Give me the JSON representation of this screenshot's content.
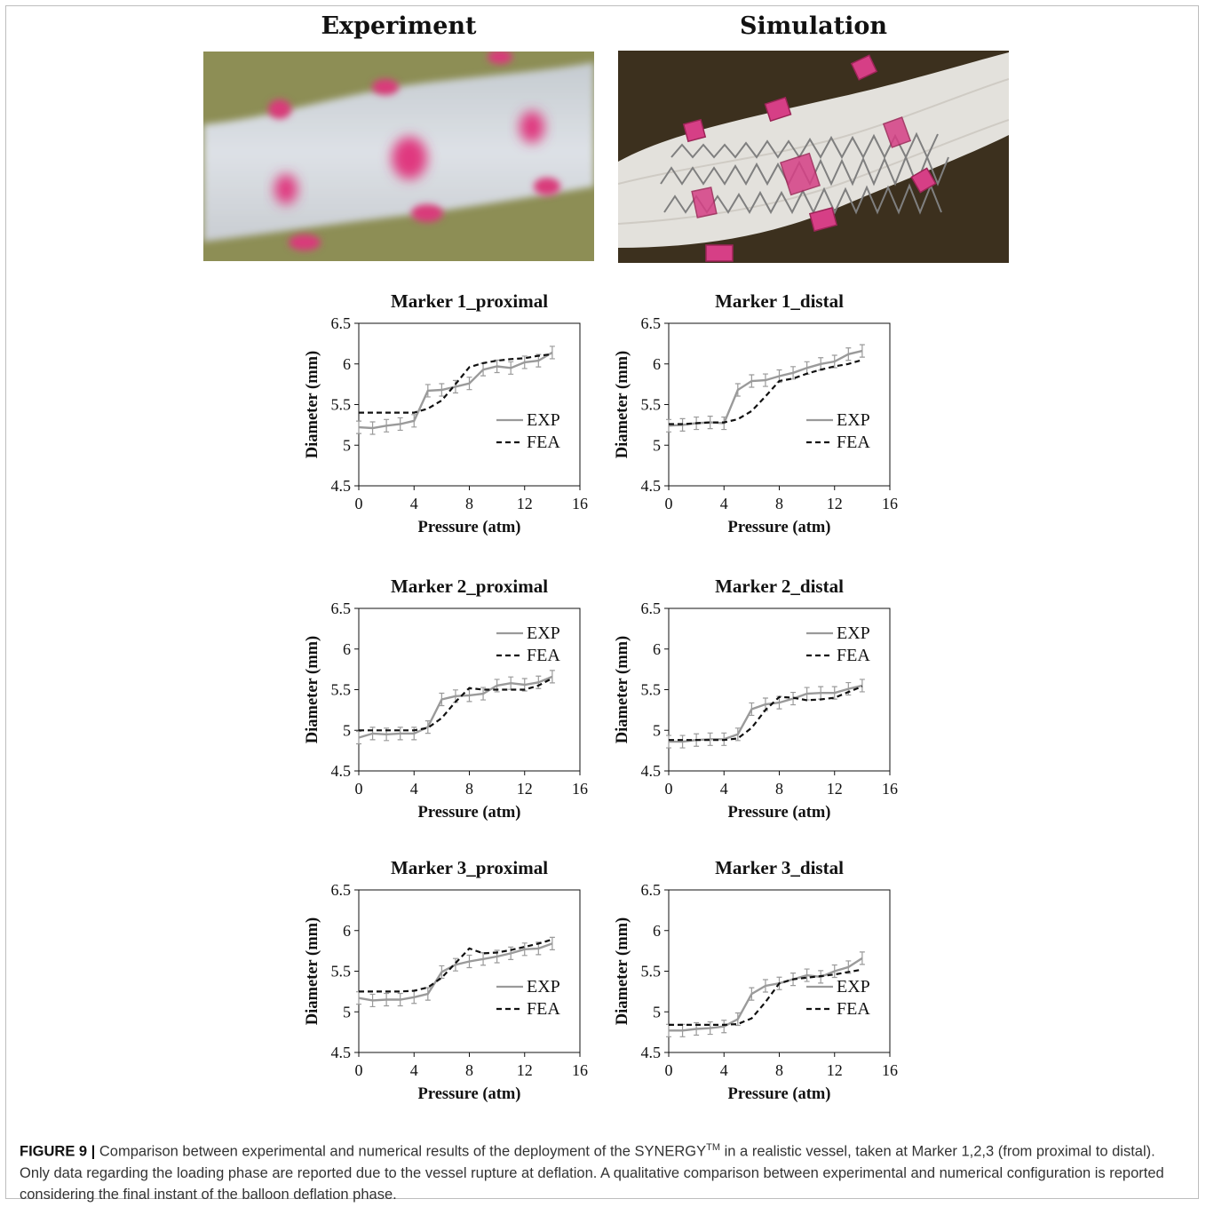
{
  "panels": {
    "experiment_title": "Experiment",
    "simulation_title": "Simulation"
  },
  "colors": {
    "exp": "#9a9a9a",
    "fea": "#111111",
    "marker_pink": "#e0387f",
    "photo_bg_experiment": "#8d8e55",
    "photo_bg_simulation": "#3c301e"
  },
  "chart_data": [
    {
      "type": "line",
      "title": "Marker 1_proximal",
      "xlabel": "Pressure (atm)",
      "ylabel": "Diameter (mm)",
      "xlim": [
        0,
        16
      ],
      "ylim": [
        4.5,
        6.5
      ],
      "xticks": [
        "0",
        "4",
        "8",
        "12",
        "16"
      ],
      "yticks": [
        "4.5",
        "5",
        "5.5",
        "6",
        "6.5"
      ],
      "legend_position": "lower-right",
      "series": [
        {
          "name": "EXP",
          "style": "solid-gray",
          "error_bars": true,
          "x": [
            0,
            1,
            2,
            3,
            4,
            5,
            6,
            7,
            8,
            9,
            10,
            11,
            12,
            13,
            14
          ],
          "y": [
            5.22,
            5.21,
            5.24,
            5.26,
            5.3,
            5.67,
            5.68,
            5.72,
            5.76,
            5.93,
            5.97,
            5.95,
            6.02,
            6.04,
            6.14
          ]
        },
        {
          "name": "FEA",
          "style": "dashed-black",
          "error_bars": false,
          "x": [
            0,
            1,
            2,
            3,
            4,
            5,
            6,
            7,
            8,
            9,
            10,
            11,
            12,
            13,
            14
          ],
          "y": [
            5.4,
            5.4,
            5.4,
            5.4,
            5.4,
            5.45,
            5.55,
            5.75,
            5.96,
            6.01,
            6.04,
            6.06,
            6.07,
            6.1,
            6.12
          ]
        }
      ]
    },
    {
      "type": "line",
      "title": "Marker 1_distal",
      "xlabel": "Pressure (atm)",
      "ylabel": "Diameter (mm)",
      "xlim": [
        0,
        16
      ],
      "ylim": [
        4.5,
        6.5
      ],
      "xticks": [
        "0",
        "4",
        "8",
        "12",
        "16"
      ],
      "yticks": [
        "4.5",
        "5",
        "5.5",
        "6",
        "6.5"
      ],
      "legend_position": "lower-right",
      "series": [
        {
          "name": "EXP",
          "style": "solid-gray",
          "error_bars": true,
          "x": [
            0,
            1,
            2,
            3,
            4,
            5,
            6,
            7,
            8,
            9,
            10,
            11,
            12,
            13,
            14
          ],
          "y": [
            5.24,
            5.25,
            5.27,
            5.28,
            5.27,
            5.68,
            5.79,
            5.8,
            5.85,
            5.89,
            5.95,
            6.0,
            6.03,
            6.12,
            6.16
          ]
        },
        {
          "name": "FEA",
          "style": "dashed-black",
          "error_bars": false,
          "x": [
            0,
            1,
            2,
            3,
            4,
            5,
            6,
            7,
            8,
            9,
            10,
            11,
            12,
            13,
            14
          ],
          "y": [
            5.26,
            5.26,
            5.27,
            5.28,
            5.28,
            5.32,
            5.42,
            5.6,
            5.79,
            5.82,
            5.88,
            5.93,
            5.97,
            6.0,
            6.05
          ]
        }
      ]
    },
    {
      "type": "line",
      "title": "Marker 2_proximal",
      "xlabel": "Pressure (atm)",
      "ylabel": "Diameter (mm)",
      "xlim": [
        0,
        16
      ],
      "ylim": [
        4.5,
        6.5
      ],
      "xticks": [
        "0",
        "4",
        "8",
        "12",
        "16"
      ],
      "yticks": [
        "4.5",
        "5",
        "5.5",
        "6",
        "6.5"
      ],
      "legend_position": "top-right",
      "series": [
        {
          "name": "EXP",
          "style": "solid-gray",
          "error_bars": true,
          "x": [
            0,
            1,
            2,
            3,
            4,
            5,
            6,
            7,
            8,
            9,
            10,
            11,
            12,
            13,
            14
          ],
          "y": [
            4.91,
            4.96,
            4.95,
            4.96,
            4.96,
            5.04,
            5.38,
            5.42,
            5.43,
            5.45,
            5.55,
            5.58,
            5.56,
            5.59,
            5.66
          ]
        },
        {
          "name": "FEA",
          "style": "dashed-black",
          "error_bars": false,
          "x": [
            0,
            1,
            2,
            3,
            4,
            5,
            6,
            7,
            8,
            9,
            10,
            11,
            12,
            13,
            14
          ],
          "y": [
            5.0,
            5.0,
            5.0,
            5.0,
            5.0,
            5.03,
            5.15,
            5.35,
            5.52,
            5.5,
            5.5,
            5.5,
            5.5,
            5.55,
            5.64
          ]
        }
      ]
    },
    {
      "type": "line",
      "title": "Marker 2_distal",
      "xlabel": "Pressure (atm)",
      "ylabel": "Diameter (mm)",
      "xlim": [
        0,
        16
      ],
      "ylim": [
        4.5,
        6.5
      ],
      "xticks": [
        "0",
        "4",
        "8",
        "12",
        "16"
      ],
      "yticks": [
        "4.5",
        "5",
        "5.5",
        "6",
        "6.5"
      ],
      "legend_position": "top-right",
      "series": [
        {
          "name": "EXP",
          "style": "solid-gray",
          "error_bars": true,
          "x": [
            0,
            1,
            2,
            3,
            4,
            5,
            6,
            7,
            8,
            9,
            10,
            11,
            12,
            13,
            14
          ],
          "y": [
            4.86,
            4.86,
            4.88,
            4.89,
            4.89,
            4.95,
            5.26,
            5.32,
            5.34,
            5.39,
            5.45,
            5.46,
            5.46,
            5.51,
            5.55
          ]
        },
        {
          "name": "FEA",
          "style": "dashed-black",
          "error_bars": false,
          "x": [
            0,
            1,
            2,
            3,
            4,
            5,
            6,
            7,
            8,
            9,
            10,
            11,
            12,
            13,
            14
          ],
          "y": [
            4.88,
            4.88,
            4.88,
            4.88,
            4.88,
            4.9,
            5.03,
            5.25,
            5.41,
            5.4,
            5.37,
            5.38,
            5.4,
            5.47,
            5.54
          ]
        }
      ]
    },
    {
      "type": "line",
      "title": "Marker 3_proximal",
      "xlabel": "Pressure (atm)",
      "ylabel": "Diameter (mm)",
      "xlim": [
        0,
        16
      ],
      "ylim": [
        4.5,
        6.5
      ],
      "xticks": [
        "0",
        "4",
        "8",
        "12",
        "16"
      ],
      "yticks": [
        "4.5",
        "5",
        "5.5",
        "6",
        "6.5"
      ],
      "legend_position": "lower-right",
      "series": [
        {
          "name": "EXP",
          "style": "solid-gray",
          "error_bars": true,
          "x": [
            0,
            1,
            2,
            3,
            4,
            5,
            6,
            7,
            8,
            9,
            10,
            11,
            12,
            13,
            14
          ],
          "y": [
            5.17,
            5.14,
            5.15,
            5.15,
            5.18,
            5.22,
            5.49,
            5.58,
            5.62,
            5.65,
            5.68,
            5.72,
            5.77,
            5.78,
            5.84
          ]
        },
        {
          "name": "FEA",
          "style": "dashed-black",
          "error_bars": false,
          "x": [
            0,
            1,
            2,
            3,
            4,
            5,
            6,
            7,
            8,
            9,
            10,
            11,
            12,
            13,
            14
          ],
          "y": [
            5.25,
            5.25,
            5.25,
            5.25,
            5.26,
            5.3,
            5.42,
            5.6,
            5.78,
            5.72,
            5.73,
            5.76,
            5.8,
            5.84,
            5.89
          ]
        }
      ]
    },
    {
      "type": "line",
      "title": "Marker 3_distal",
      "xlabel": "Pressure (atm)",
      "ylabel": "Diameter (mm)",
      "xlim": [
        0,
        16
      ],
      "ylim": [
        4.5,
        6.5
      ],
      "xticks": [
        "0",
        "4",
        "8",
        "12",
        "16"
      ],
      "yticks": [
        "4.5",
        "5",
        "5.5",
        "6",
        "6.5"
      ],
      "legend_position": "lower-right",
      "series": [
        {
          "name": "EXP",
          "style": "solid-gray",
          "error_bars": true,
          "x": [
            0,
            1,
            2,
            3,
            4,
            5,
            6,
            7,
            8,
            9,
            10,
            11,
            12,
            13,
            14
          ],
          "y": [
            4.77,
            4.77,
            4.79,
            4.8,
            4.82,
            4.91,
            5.22,
            5.32,
            5.35,
            5.4,
            5.45,
            5.43,
            5.5,
            5.55,
            5.66
          ]
        },
        {
          "name": "FEA",
          "style": "dashed-black",
          "error_bars": false,
          "x": [
            0,
            1,
            2,
            3,
            4,
            5,
            6,
            7,
            8,
            9,
            10,
            11,
            12,
            13,
            14
          ],
          "y": [
            4.84,
            4.84,
            4.84,
            4.84,
            4.84,
            4.85,
            4.92,
            5.12,
            5.35,
            5.4,
            5.42,
            5.44,
            5.46,
            5.49,
            5.52
          ]
        }
      ]
    }
  ],
  "caption": {
    "label": "FIGURE 9 |",
    "text_before_sup": " Comparison between experimental and numerical results of the deployment of the SYNERGY",
    "sup": "TM",
    "text_after_sup": " in a realistic vessel, taken at Marker 1,2,3 (from proximal to distal). Only data regarding the loading phase are reported due to the vessel rupture at deflation. A qualitative comparison between experimental and numerical configuration is reported considering the final instant of the balloon deflation phase."
  }
}
